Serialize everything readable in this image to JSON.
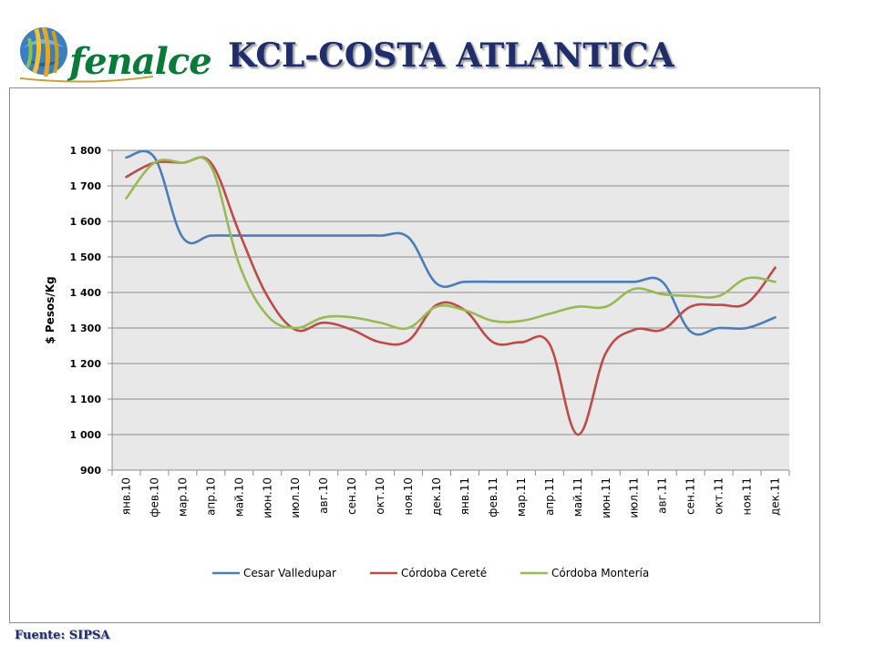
{
  "header": {
    "logo_text": "fenalce",
    "title": "KCL-COSTA ATLANTICA"
  },
  "footer": {
    "source": "Fuente: SIPSA"
  },
  "chart_data": {
    "type": "line",
    "title": "",
    "xlabel": "",
    "ylabel": "$ Pesos/Kg",
    "ylim": [
      900,
      1800
    ],
    "yticks": [
      900,
      1000,
      1100,
      1200,
      1300,
      1400,
      1500,
      1600,
      1700,
      1800
    ],
    "ytick_labels": [
      "900",
      "1 000",
      "1 100",
      "1 200",
      "1 300",
      "1 400",
      "1 500",
      "1 600",
      "1 700",
      "1 800"
    ],
    "grid": true,
    "legend": "bottom",
    "categories": [
      "янв.10",
      "фев.10",
      "мар.10",
      "апр.10",
      "май.10",
      "июн.10",
      "июл.10",
      "авг.10",
      "сен.10",
      "окт.10",
      "ноя.10",
      "дек.10",
      "янв.11",
      "фев.11",
      "мар.11",
      "апр.11",
      "май.11",
      "июн.11",
      "июл.11",
      "авг.11",
      "сен.11",
      "окт.11",
      "ноя.11",
      "дек.11"
    ],
    "series": [
      {
        "name": "Cesar Valledupar",
        "color": "#4a7ebb",
        "values": [
          1780,
          1780,
          1555,
          1560,
          1560,
          1560,
          1560,
          1560,
          1560,
          1560,
          1555,
          1425,
          1430,
          1430,
          1430,
          1430,
          1430,
          1430,
          1430,
          1430,
          1290,
          1300,
          1300,
          1330
        ]
      },
      {
        "name": "Córdoba Cereté",
        "color": "#be4b48",
        "values": [
          1725,
          1765,
          1765,
          1765,
          1570,
          1390,
          1295,
          1315,
          1295,
          1260,
          1265,
          1365,
          1350,
          1260,
          1260,
          1255,
          1000,
          1230,
          1295,
          1295,
          1360,
          1365,
          1370,
          1470
        ]
      },
      {
        "name": "Córdoba Montería",
        "color": "#98b954",
        "values": [
          1665,
          1765,
          1765,
          1755,
          1480,
          1335,
          1300,
          1330,
          1330,
          1315,
          1300,
          1360,
          1350,
          1320,
          1320,
          1340,
          1360,
          1360,
          1410,
          1395,
          1390,
          1390,
          1440,
          1430
        ]
      }
    ]
  }
}
